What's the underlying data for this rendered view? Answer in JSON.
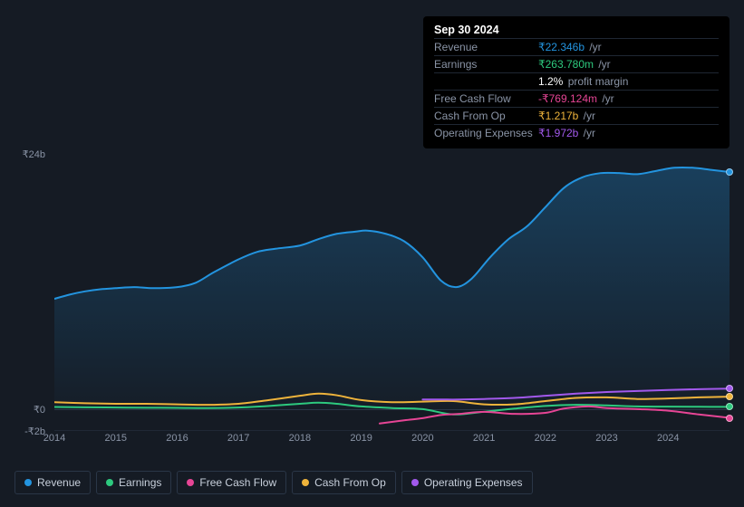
{
  "tooltip": {
    "date": "Sep 30 2024",
    "rows": [
      {
        "label": "Revenue",
        "prefix": "₹",
        "value": "22.346b",
        "unit": "/yr",
        "color": "#2394df"
      },
      {
        "label": "Earnings",
        "prefix": "₹",
        "value": "263.780m",
        "unit": "/yr",
        "color": "#2dc97e"
      },
      {
        "label": "",
        "prefix": "",
        "value": "1.2%",
        "unit": "profit margin",
        "color": "#ffffff"
      },
      {
        "label": "Free Cash Flow",
        "prefix": "-₹",
        "value": "769.124m",
        "unit": "/yr",
        "color": "#e64595"
      },
      {
        "label": "Cash From Op",
        "prefix": "₹",
        "value": "1.217b",
        "unit": "/yr",
        "color": "#eeb33b"
      },
      {
        "label": "Operating Expenses",
        "prefix": "₹",
        "value": "1.972b",
        "unit": "/yr",
        "color": "#a259ec"
      }
    ]
  },
  "chart": {
    "type": "area+line",
    "background": "#151b24",
    "yaxis": {
      "labels": [
        {
          "text": "₹24b",
          "y_val": 24
        },
        {
          "text": "₹0",
          "y_val": 0
        },
        {
          "text": "-₹2b",
          "y_val": -2
        }
      ],
      "min": -2,
      "max": 24,
      "color": "#8a94a6",
      "fontsize": 11
    },
    "xaxis": {
      "min": 2014,
      "max": 2025,
      "ticks": [
        2014,
        2015,
        2016,
        2017,
        2018,
        2019,
        2020,
        2021,
        2022,
        2023,
        2024
      ],
      "color": "#8a94a6",
      "fontsize": 11
    },
    "grid_color": "#2a3647",
    "series": [
      {
        "name": "Revenue",
        "color": "#2394df",
        "area": true,
        "area_opacity_top": 0.3,
        "area_opacity_bottom": 0.02,
        "line_width": 2,
        "points": [
          [
            2014.0,
            10.4
          ],
          [
            2014.25,
            10.8
          ],
          [
            2014.5,
            11.1
          ],
          [
            2014.75,
            11.3
          ],
          [
            2015.0,
            11.4
          ],
          [
            2015.3,
            11.5
          ],
          [
            2015.6,
            11.4
          ],
          [
            2016.0,
            11.5
          ],
          [
            2016.3,
            11.9
          ],
          [
            2016.6,
            12.9
          ],
          [
            2017.0,
            14.1
          ],
          [
            2017.3,
            14.8
          ],
          [
            2017.6,
            15.1
          ],
          [
            2018.0,
            15.4
          ],
          [
            2018.3,
            16.0
          ],
          [
            2018.6,
            16.5
          ],
          [
            2018.9,
            16.7
          ],
          [
            2019.1,
            16.8
          ],
          [
            2019.4,
            16.5
          ],
          [
            2019.7,
            15.8
          ],
          [
            2020.0,
            14.3
          ],
          [
            2020.3,
            12.1
          ],
          [
            2020.55,
            11.5
          ],
          [
            2020.8,
            12.3
          ],
          [
            2021.1,
            14.3
          ],
          [
            2021.4,
            16.0
          ],
          [
            2021.7,
            17.2
          ],
          [
            2022.0,
            19.0
          ],
          [
            2022.3,
            20.8
          ],
          [
            2022.6,
            21.8
          ],
          [
            2022.9,
            22.2
          ],
          [
            2023.2,
            22.2
          ],
          [
            2023.5,
            22.1
          ],
          [
            2023.8,
            22.4
          ],
          [
            2024.1,
            22.7
          ],
          [
            2024.4,
            22.7
          ],
          [
            2024.7,
            22.5
          ],
          [
            2025.0,
            22.3
          ]
        ]
      },
      {
        "name": "Earnings",
        "color": "#2dc97e",
        "area": false,
        "line_width": 2,
        "points": [
          [
            2014.0,
            0.25
          ],
          [
            2014.5,
            0.22
          ],
          [
            2015.0,
            0.2
          ],
          [
            2015.5,
            0.18
          ],
          [
            2016.0,
            0.17
          ],
          [
            2016.5,
            0.15
          ],
          [
            2017.0,
            0.2
          ],
          [
            2017.5,
            0.35
          ],
          [
            2018.0,
            0.55
          ],
          [
            2018.3,
            0.65
          ],
          [
            2018.6,
            0.55
          ],
          [
            2019.0,
            0.3
          ],
          [
            2019.5,
            0.15
          ],
          [
            2020.0,
            0.05
          ],
          [
            2020.5,
            -0.45
          ],
          [
            2021.0,
            -0.2
          ],
          [
            2021.5,
            0.1
          ],
          [
            2022.0,
            0.35
          ],
          [
            2022.5,
            0.45
          ],
          [
            2023.0,
            0.4
          ],
          [
            2023.5,
            0.3
          ],
          [
            2024.0,
            0.28
          ],
          [
            2024.5,
            0.27
          ],
          [
            2025.0,
            0.26
          ]
        ]
      },
      {
        "name": "Free Cash Flow",
        "color": "#e64595",
        "area": false,
        "line_width": 2,
        "points": [
          [
            2019.3,
            -1.3
          ],
          [
            2019.7,
            -1.0
          ],
          [
            2020.0,
            -0.8
          ],
          [
            2020.3,
            -0.5
          ],
          [
            2020.6,
            -0.4
          ],
          [
            2021.0,
            -0.2
          ],
          [
            2021.5,
            -0.4
          ],
          [
            2022.0,
            -0.3
          ],
          [
            2022.3,
            0.1
          ],
          [
            2022.7,
            0.3
          ],
          [
            2023.0,
            0.15
          ],
          [
            2023.5,
            0.05
          ],
          [
            2024.0,
            -0.1
          ],
          [
            2024.5,
            -0.45
          ],
          [
            2025.0,
            -0.77
          ]
        ]
      },
      {
        "name": "Cash From Op",
        "color": "#eeb33b",
        "area": false,
        "line_width": 2,
        "points": [
          [
            2014.0,
            0.7
          ],
          [
            2014.5,
            0.6
          ],
          [
            2015.0,
            0.55
          ],
          [
            2015.5,
            0.55
          ],
          [
            2016.0,
            0.5
          ],
          [
            2016.5,
            0.45
          ],
          [
            2017.0,
            0.55
          ],
          [
            2017.5,
            0.9
          ],
          [
            2018.0,
            1.3
          ],
          [
            2018.3,
            1.5
          ],
          [
            2018.6,
            1.35
          ],
          [
            2019.0,
            0.9
          ],
          [
            2019.5,
            0.7
          ],
          [
            2020.0,
            0.75
          ],
          [
            2020.5,
            0.8
          ],
          [
            2021.0,
            0.5
          ],
          [
            2021.5,
            0.5
          ],
          [
            2022.0,
            0.8
          ],
          [
            2022.5,
            1.1
          ],
          [
            2023.0,
            1.15
          ],
          [
            2023.5,
            1.0
          ],
          [
            2024.0,
            1.05
          ],
          [
            2024.5,
            1.15
          ],
          [
            2025.0,
            1.22
          ]
        ]
      },
      {
        "name": "Operating Expenses",
        "color": "#a259ec",
        "area": false,
        "line_width": 2,
        "points": [
          [
            2020.0,
            0.95
          ],
          [
            2020.3,
            0.95
          ],
          [
            2020.6,
            0.95
          ],
          [
            2021.0,
            1.0
          ],
          [
            2021.5,
            1.1
          ],
          [
            2022.0,
            1.3
          ],
          [
            2022.5,
            1.5
          ],
          [
            2023.0,
            1.65
          ],
          [
            2023.5,
            1.75
          ],
          [
            2024.0,
            1.85
          ],
          [
            2024.5,
            1.92
          ],
          [
            2025.0,
            1.97
          ]
        ]
      }
    ]
  },
  "legend": {
    "border_color": "#2a3647",
    "text_color": "#c8d0dc",
    "fontsize": 12,
    "items": [
      {
        "label": "Revenue",
        "color": "#2394df"
      },
      {
        "label": "Earnings",
        "color": "#2dc97e"
      },
      {
        "label": "Free Cash Flow",
        "color": "#e64595"
      },
      {
        "label": "Cash From Op",
        "color": "#eeb33b"
      },
      {
        "label": "Operating Expenses",
        "color": "#a259ec"
      }
    ]
  }
}
